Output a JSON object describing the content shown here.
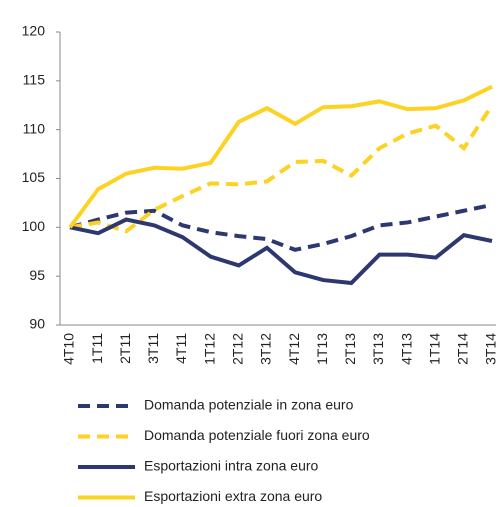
{
  "chart_data": {
    "type": "line",
    "categories": [
      "4T10",
      "1T11",
      "2T11",
      "3T11",
      "4T11",
      "1T12",
      "2T12",
      "3T12",
      "4T12",
      "1T13",
      "2T13",
      "3T13",
      "4T13",
      "1T14",
      "2T14",
      "3T14"
    ],
    "series": [
      {
        "name": "Domanda potenziale in zona euro",
        "color": "#2e3870",
        "style": "dashed",
        "values": [
          100,
          100.8,
          101.5,
          101.7,
          100.2,
          99.5,
          99.1,
          98.8,
          97.7,
          98.3,
          99.1,
          100.2,
          100.5,
          101.1,
          101.7,
          102.3
        ]
      },
      {
        "name": "Domanda potenziale fuori zona euro",
        "color": "#fcd223",
        "style": "dashed",
        "values": [
          100,
          100.5,
          99.6,
          101.8,
          103.2,
          104.5,
          104.4,
          104.7,
          106.7,
          106.8,
          105.3,
          108.1,
          109.6,
          110.4,
          108.1,
          112.5
        ]
      },
      {
        "name": "Esportazioni intra zona euro",
        "color": "#2e3870",
        "style": "solid",
        "values": [
          100,
          99.4,
          100.8,
          100.2,
          99,
          97,
          96.1,
          97.9,
          95.4,
          94.6,
          94.3,
          97.2,
          97.2,
          96.9,
          99.2,
          98.6
        ]
      },
      {
        "name": "Esportazioni extra zona euro",
        "color": "#fcd223",
        "style": "solid",
        "values": [
          100,
          103.9,
          105.5,
          106.1,
          106,
          106.6,
          110.8,
          112.2,
          110.6,
          112.3,
          112.4,
          112.9,
          112.1,
          112.2,
          113,
          114.4
        ]
      }
    ],
    "ylim": [
      90,
      120
    ],
    "yticks": [
      90,
      95,
      100,
      105,
      110,
      115,
      120
    ],
    "grid": false
  }
}
